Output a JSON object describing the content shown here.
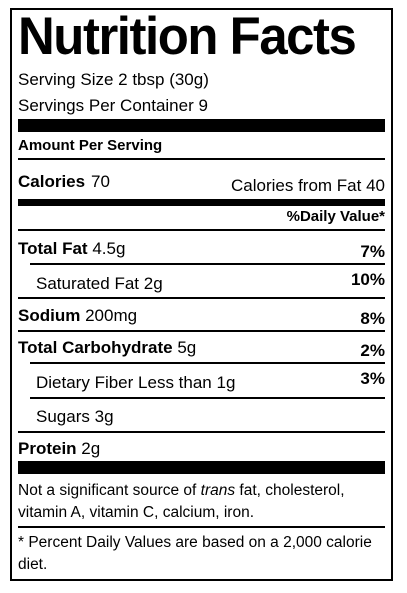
{
  "title": "Nutrition Facts",
  "serving_size": "Serving Size 2 tbsp (30g)",
  "servings_per_container": "Servings Per Container 9",
  "amount_per_serving": "Amount Per Serving",
  "calories": {
    "label": "Calories",
    "value": "70",
    "from_fat": "Calories from Fat 40"
  },
  "daily_value_header": "%Daily Value*",
  "rows": [
    {
      "label": "Total Fat",
      "amount": "4.5g",
      "dv": "7%"
    },
    {
      "label": "Saturated Fat",
      "amount": "2g",
      "dv": "10%"
    },
    {
      "label": "Sodium",
      "amount": "200mg",
      "dv": "8%"
    },
    {
      "label": "Total Carbohydrate",
      "amount": "5g",
      "dv": "2%"
    },
    {
      "label": "Dietary Fiber",
      "amount": "Less than 1g",
      "dv": "3%"
    },
    {
      "label": "Sugars",
      "amount": "3g"
    },
    {
      "label": "Protein",
      "amount": "2g"
    }
  ],
  "not_significant": {
    "prefix": "Not a significant source of ",
    "italic": "trans",
    "suffix": " fat, cholesterol, vitamin A, vitamin C, calcium, iron."
  },
  "footnote": "* Percent Daily Values are based on a 2,000 calorie diet."
}
